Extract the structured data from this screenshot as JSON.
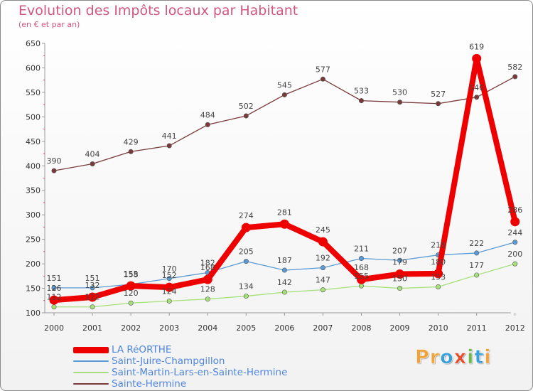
{
  "title": "Evolution des Impôts locaux par Habitant",
  "subtitle": "(en € et par an)",
  "logo": {
    "text": "Proxiti",
    "letters": [
      "P",
      "r",
      "o",
      "x",
      "i",
      "t",
      "i"
    ],
    "colors": [
      "#f2a23a",
      "#f2a23a",
      "#3aa0d8",
      "#e84a2a",
      "#6ab84a",
      "#3aa0d8",
      "#f2a23a"
    ]
  },
  "chart_data": {
    "type": "line",
    "title": "Evolution des Impôts locaux par Habitant",
    "subtitle": "(en € et par an)",
    "xlabel": "",
    "ylabel": "",
    "x": [
      "2000",
      "2001",
      "2002",
      "2003",
      "2004",
      "2005",
      "2006",
      "2007",
      "2008",
      "2009",
      "2010",
      "2011",
      "2012"
    ],
    "ylim": [
      100,
      650
    ],
    "yticks": [
      100,
      150,
      200,
      250,
      300,
      350,
      400,
      450,
      500,
      550,
      600,
      650
    ],
    "grid": false,
    "legend_position": "bottom-left",
    "series": [
      {
        "name": "LA RéORTHE",
        "color": "#ee0000",
        "values": [
          126,
          132,
          155,
          152,
          168,
          274,
          281,
          245,
          168,
          179,
          180,
          619,
          286
        ],
        "labels": [
          "126",
          "132",
          "155",
          "152",
          "168",
          "274",
          "281",
          "245",
          "168",
          "179",
          "180",
          "619",
          "286"
        ]
      },
      {
        "name": "Saint-Juire-Champgillon",
        "color": "#5b9bd5",
        "values": [
          151,
          151,
          158,
          170,
          182,
          205,
          187,
          192,
          211,
          207,
          218,
          222,
          244
        ],
        "labels": [
          "151",
          "151",
          "158",
          "170",
          "182",
          "205",
          "187",
          "192",
          "211",
          "207",
          "218",
          "222",
          "244"
        ]
      },
      {
        "name": "Saint-Martin-Lars-en-Sainte-Hermine",
        "color": "#a6e07a",
        "values": [
          112,
          112,
          120,
          124,
          128,
          134,
          142,
          147,
          155,
          150,
          153,
          177,
          200
        ],
        "labels": [
          "112",
          "112",
          "120",
          "124",
          "128",
          "134",
          "142",
          "147",
          "155",
          "150",
          "153",
          "177",
          "200"
        ]
      },
      {
        "name": "Sainte-Hermine",
        "color": "#7a3a3a",
        "values": [
          390,
          404,
          429,
          441,
          484,
          502,
          545,
          577,
          533,
          530,
          527,
          540,
          582
        ],
        "labels": [
          "390",
          "404",
          "429",
          "441",
          "484",
          "502",
          "545",
          "577",
          "533",
          "530",
          "527",
          "540",
          "582"
        ]
      }
    ]
  }
}
